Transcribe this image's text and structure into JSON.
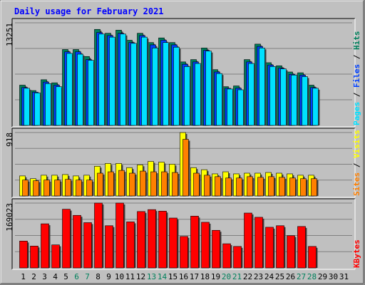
{
  "colors": {
    "background": "#C0C0C0",
    "hits": "#00805C",
    "files": "#0040FF",
    "pages": "#00E0FF",
    "visits": "#FFFF00",
    "sites": "#FF8000",
    "kbytes": "#FF0000",
    "title": "#0000FF",
    "weekend_label": "#00805C",
    "weekday_label": "#000000"
  },
  "chart_data": [
    {
      "type": "bar",
      "title": "Daily usage for February 2021",
      "ymax_label": "13251",
      "ymax": 13251,
      "ylabel_parts": [
        {
          "text": "Pages",
          "color": "#00E0FF"
        },
        {
          "text": " / ",
          "color": "#000000"
        },
        {
          "text": "Files",
          "color": "#0040FF"
        },
        {
          "text": " / ",
          "color": "#000000"
        },
        {
          "text": "Hits",
          "color": "#00805C"
        }
      ],
      "categories": [
        "1",
        "2",
        "3",
        "4",
        "5",
        "6",
        "7",
        "8",
        "9",
        "10",
        "11",
        "12",
        "13",
        "14",
        "15",
        "16",
        "17",
        "18",
        "19",
        "20",
        "21",
        "22",
        "23",
        "24",
        "25",
        "26",
        "27",
        "28",
        "29",
        "30",
        "31"
      ],
      "weekend_days": [
        "6",
        "7",
        "13",
        "14",
        "20",
        "21",
        "27",
        "28"
      ],
      "series": [
        {
          "name": "Hits",
          "values": [
            5200,
            4500,
            5900,
            5500,
            9800,
            9800,
            8900,
            12400,
            11900,
            12300,
            11000,
            11900,
            10700,
            11300,
            10700,
            8200,
            8500,
            10000,
            7200,
            5000,
            5100,
            8500,
            10500,
            8100,
            7700,
            6900,
            6800,
            5200,
            0,
            0,
            0
          ]
        },
        {
          "name": "Files",
          "values": [
            4900,
            4300,
            5600,
            5200,
            9500,
            9500,
            8500,
            12000,
            11600,
            11900,
            10700,
            11600,
            10400,
            11000,
            10400,
            7900,
            8200,
            9700,
            6900,
            4800,
            4800,
            8200,
            10200,
            7800,
            7400,
            6600,
            6500,
            4900,
            0,
            0,
            0
          ]
        },
        {
          "name": "Pages",
          "values": [
            4800,
            4200,
            5400,
            5000,
            9300,
            9200,
            8400,
            11800,
            11400,
            11800,
            10600,
            11400,
            10000,
            10700,
            10100,
            7600,
            8000,
            9600,
            6700,
            4700,
            4600,
            8000,
            10000,
            7600,
            7300,
            6500,
            6300,
            4800,
            0,
            0,
            0
          ]
        }
      ]
    },
    {
      "type": "bar",
      "ymax_label": "918",
      "ymax": 918,
      "ylabel_parts": [
        {
          "text": "Sites",
          "color": "#FF8000"
        },
        {
          "text": " / ",
          "color": "#000000"
        },
        {
          "text": "Visits",
          "color": "#FFFF00"
        }
      ],
      "categories": [
        "1",
        "2",
        "3",
        "4",
        "5",
        "6",
        "7",
        "8",
        "9",
        "10",
        "11",
        "12",
        "13",
        "14",
        "15",
        "16",
        "17",
        "18",
        "19",
        "20",
        "21",
        "22",
        "23",
        "24",
        "25",
        "26",
        "27",
        "28",
        "29",
        "30",
        "31"
      ],
      "series": [
        {
          "name": "Visits",
          "values": [
            290,
            250,
            300,
            300,
            310,
            290,
            300,
            430,
            470,
            470,
            410,
            450,
            500,
            490,
            460,
            918,
            410,
            380,
            320,
            350,
            320,
            330,
            330,
            340,
            330,
            320,
            300,
            300,
            0,
            0,
            0
          ]
        },
        {
          "name": "Sites",
          "values": [
            230,
            220,
            230,
            230,
            240,
            230,
            230,
            330,
            350,
            370,
            330,
            360,
            350,
            350,
            340,
            820,
            330,
            300,
            280,
            260,
            260,
            280,
            270,
            280,
            270,
            260,
            250,
            250,
            0,
            0,
            0
          ]
        }
      ]
    },
    {
      "type": "bar",
      "ymax_label": "169023",
      "ymax": 169023,
      "ylabel_parts": [
        {
          "text": "KBytes",
          "color": "#FF0000"
        }
      ],
      "categories": [
        "1",
        "2",
        "3",
        "4",
        "5",
        "6",
        "7",
        "8",
        "9",
        "10",
        "11",
        "12",
        "13",
        "14",
        "15",
        "16",
        "17",
        "18",
        "19",
        "20",
        "21",
        "22",
        "23",
        "24",
        "25",
        "26",
        "27",
        "28",
        "29",
        "30",
        "31"
      ],
      "series": [
        {
          "name": "KBytes",
          "values": [
            70000,
            57000,
            115000,
            60000,
            153000,
            137000,
            118000,
            169023,
            110000,
            169023,
            120000,
            147000,
            152000,
            148000,
            130000,
            82000,
            135000,
            119000,
            98000,
            63000,
            56000,
            143000,
            132000,
            106000,
            110000,
            84000,
            108000,
            56000,
            0,
            0,
            0
          ]
        }
      ]
    }
  ]
}
